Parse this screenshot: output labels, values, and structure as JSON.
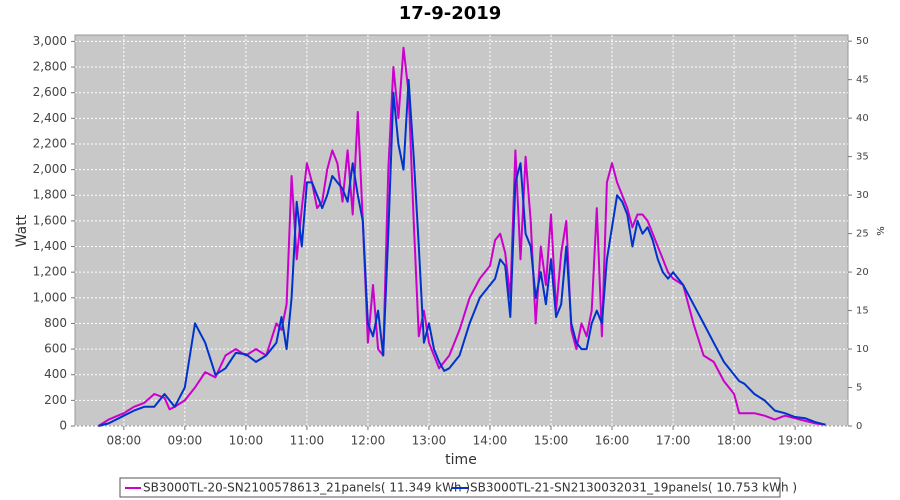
{
  "chart_data": {
    "type": "line",
    "title": "17-9-2019",
    "x_label": "time",
    "y_label": "Watt",
    "y2_label": "%",
    "xlim": [
      "07:12",
      "19:52"
    ],
    "xticks": [
      "08:00",
      "09:00",
      "10:00",
      "11:00",
      "12:00",
      "13:00",
      "14:00",
      "15:00",
      "16:00",
      "17:00",
      "18:00",
      "19:00"
    ],
    "ylim": [
      0,
      3050
    ],
    "yticks": [
      0,
      200,
      400,
      600,
      800,
      {
        "value": 1000,
        "label": "1,000"
      },
      {
        "value": 1200,
        "label": "1,200"
      },
      {
        "value": 1400,
        "label": "1,400"
      },
      {
        "value": 1600,
        "label": "1,600"
      },
      {
        "value": 1800,
        "label": "1,800"
      },
      {
        "value": 2000,
        "label": "2,000"
      },
      {
        "value": 2200,
        "label": "2,200"
      },
      {
        "value": 2400,
        "label": "2,400"
      },
      {
        "value": 2600,
        "label": "2,600"
      },
      {
        "value": 2800,
        "label": "2,800"
      },
      {
        "value": 3000,
        "label": "3,000"
      }
    ],
    "y2lim": [
      0,
      50.8
    ],
    "y2ticks": [
      0,
      5,
      10,
      15,
      20,
      25,
      30,
      35,
      40,
      45,
      50
    ],
    "grid": true,
    "legend": "bottom",
    "x": [
      "07:35",
      "07:45",
      "08:00",
      "08:10",
      "08:20",
      "08:30",
      "08:40",
      "08:45",
      "08:50",
      "09:00",
      "09:10",
      "09:20",
      "09:30",
      "09:40",
      "09:50",
      "10:00",
      "10:10",
      "10:20",
      "10:30",
      "10:35",
      "10:40",
      "10:45",
      "10:50",
      "10:55",
      "11:00",
      "11:05",
      "11:10",
      "11:15",
      "11:20",
      "11:25",
      "11:30",
      "11:35",
      "11:40",
      "11:45",
      "11:50",
      "11:55",
      "12:00",
      "12:05",
      "12:10",
      "12:15",
      "12:20",
      "12:25",
      "12:30",
      "12:35",
      "12:40",
      "12:45",
      "12:50",
      "12:55",
      "13:00",
      "13:05",
      "13:10",
      "13:15",
      "13:20",
      "13:30",
      "13:40",
      "13:50",
      "14:00",
      "14:05",
      "14:10",
      "14:15",
      "14:20",
      "14:25",
      "14:30",
      "14:35",
      "14:40",
      "14:45",
      "14:50",
      "14:55",
      "15:00",
      "15:05",
      "15:10",
      "15:15",
      "15:20",
      "15:25",
      "15:30",
      "15:35",
      "15:40",
      "15:45",
      "15:50",
      "15:55",
      "16:00",
      "16:05",
      "16:10",
      "16:15",
      "16:20",
      "16:25",
      "16:30",
      "16:35",
      "16:40",
      "16:45",
      "16:50",
      "16:55",
      "17:00",
      "17:10",
      "17:20",
      "17:30",
      "17:40",
      "17:50",
      "18:00",
      "18:05",
      "18:10",
      "18:20",
      "18:30",
      "18:40",
      "18:50",
      "19:00",
      "19:10",
      "19:20",
      "19:30"
    ],
    "series": [
      {
        "name": "SB3000TL-20-SN2100578613_21panels( 11.349 kWh )",
        "color": "#cc00cc",
        "values": [
          0,
          50,
          100,
          150,
          180,
          250,
          220,
          130,
          150,
          200,
          300,
          420,
          380,
          550,
          600,
          550,
          600,
          550,
          800,
          750,
          950,
          1950,
          1300,
          1700,
          2050,
          1900,
          1700,
          1750,
          2000,
          2150,
          2050,
          1750,
          2150,
          1650,
          2450,
          1600,
          650,
          1100,
          600,
          550,
          2000,
          2800,
          2400,
          2950,
          2600,
          1600,
          700,
          900,
          650,
          550,
          450,
          500,
          550,
          750,
          1000,
          1150,
          1250,
          1450,
          1500,
          1350,
          1000,
          2150,
          1300,
          2100,
          1600,
          800,
          1400,
          1100,
          1650,
          900,
          1350,
          1600,
          750,
          600,
          800,
          700,
          900,
          1700,
          700,
          1900,
          2050,
          1900,
          1800,
          1700,
          1550,
          1650,
          1650,
          1600,
          1500,
          1400,
          1300,
          1200,
          1150,
          1100,
          800,
          550,
          500,
          350,
          250,
          100,
          100,
          100,
          80,
          50,
          80,
          60,
          40,
          20,
          10
        ]
      },
      {
        "name": "SB3000TL-21-SN2130032031_19panels( 10.753 kWh )",
        "color": "#0033cc",
        "values": [
          0,
          20,
          80,
          120,
          150,
          150,
          250,
          200,
          150,
          300,
          800,
          650,
          400,
          450,
          570,
          560,
          500,
          550,
          650,
          850,
          600,
          1000,
          1750,
          1400,
          1900,
          1900,
          1800,
          1700,
          1800,
          1950,
          1900,
          1850,
          1750,
          2050,
          1800,
          1600,
          800,
          700,
          900,
          550,
          1500,
          2600,
          2200,
          2000,
          2700,
          2100,
          1400,
          650,
          800,
          600,
          500,
          430,
          450,
          550,
          800,
          1000,
          1100,
          1150,
          1300,
          1250,
          850,
          1900,
          2050,
          1500,
          1400,
          1000,
          1200,
          950,
          1300,
          850,
          950,
          1400,
          800,
          650,
          600,
          600,
          800,
          900,
          800,
          1300,
          1550,
          1800,
          1750,
          1650,
          1400,
          1600,
          1500,
          1550,
          1450,
          1300,
          1200,
          1150,
          1200,
          1100,
          950,
          800,
          650,
          500,
          400,
          350,
          330,
          250,
          200,
          120,
          100,
          70,
          60,
          30,
          10
        ]
      }
    ]
  }
}
